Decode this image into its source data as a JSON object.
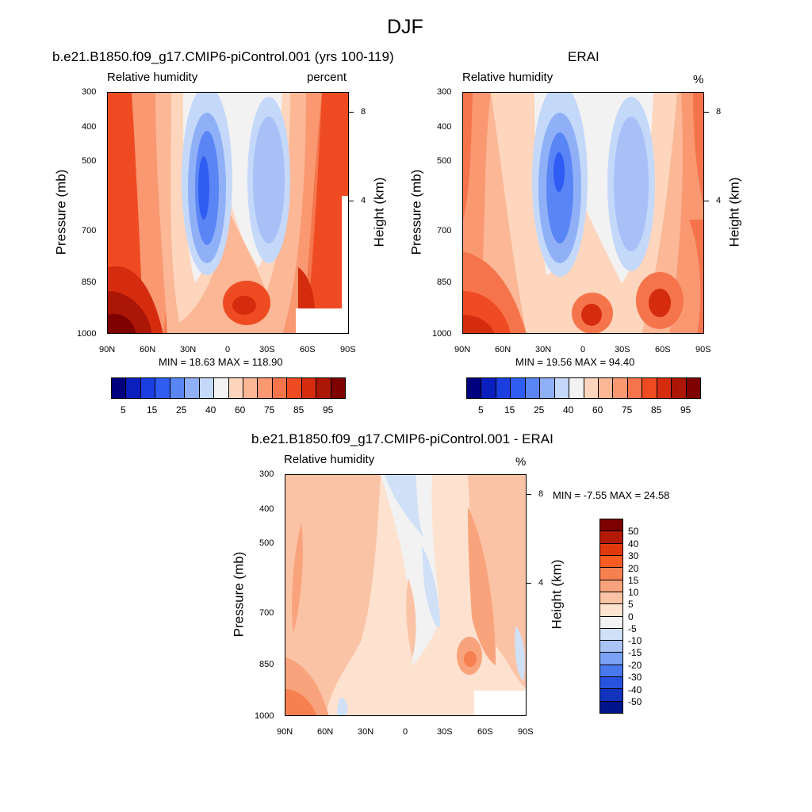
{
  "figure_title": "DJF",
  "chart_data": [
    {
      "type": "heatmap",
      "title": "b.e21.B1850.f09_g17.CMIP6-piControl.001 (yrs 100-119)",
      "left_label": "Relative humidity",
      "right_label": "percent",
      "ylabel": "Pressure (mb)",
      "ylabel_right": "Height (km)",
      "x_ticks": [
        "90N",
        "60N",
        "30N",
        "0",
        "30S",
        "60S",
        "90S"
      ],
      "y_ticks": [
        "300",
        "400",
        "500",
        "700",
        "850",
        "1000"
      ],
      "y_ticks_right": [
        "8",
        "4"
      ],
      "stats": "MIN =  18.63  MAX = 118.90",
      "colorbar_labels": [
        "5",
        "15",
        "25",
        "40",
        "60",
        "75",
        "85",
        "95"
      ]
    },
    {
      "type": "heatmap",
      "title": "ERAI",
      "left_label": "Relative humidity",
      "right_label": "%",
      "ylabel": "Pressure (mb)",
      "ylabel_right": "Height (km)",
      "x_ticks": [
        "90N",
        "60N",
        "30N",
        "0",
        "30S",
        "60S",
        "90S"
      ],
      "y_ticks": [
        "300",
        "400",
        "500",
        "700",
        "850",
        "1000"
      ],
      "y_ticks_right": [
        "8",
        "4"
      ],
      "stats": "MIN =  19.56  MAX =  94.40",
      "colorbar_labels": [
        "5",
        "15",
        "25",
        "40",
        "60",
        "75",
        "85",
        "95"
      ]
    },
    {
      "type": "heatmap",
      "title": "b.e21.B1850.f09_g17.CMIP6-piControl.001 - ERAI",
      "left_label": "Relative humidity",
      "right_label": "%",
      "ylabel": "Pressure (mb)",
      "ylabel_right": "Height (km)",
      "x_ticks": [
        "90N",
        "60N",
        "30N",
        "0",
        "30S",
        "60S",
        "90S"
      ],
      "y_ticks": [
        "300",
        "400",
        "500",
        "700",
        "850",
        "1000"
      ],
      "y_ticks_right": [
        "8",
        "4"
      ],
      "stats": "MIN = -7.55  MAX =  24.58",
      "colorbar_labels": [
        "50",
        "40",
        "30",
        "20",
        "15",
        "10",
        "5",
        "0",
        "-5",
        "-10",
        "-15",
        "-20",
        "-30",
        "-40",
        "-50"
      ]
    }
  ],
  "colors": {
    "abs_scale": [
      "#00007f",
      "#0a1fbd",
      "#1a3ee0",
      "#2f5cf2",
      "#5a86f5",
      "#8fb0f7",
      "#c4d8fa",
      "#f2f2f2",
      "#fdd6bd",
      "#fbb796",
      "#f99871",
      "#f6744b",
      "#ef4b22",
      "#d52c0f",
      "#ab1606",
      "#7e0000"
    ],
    "diff_scale": [
      "#7e0000",
      "#b21a06",
      "#e0390d",
      "#f95b22",
      "#f78051",
      "#f9a37c",
      "#fbc3a5",
      "#fde2d0",
      "#f2f2f2",
      "#cfe0f7",
      "#a9c4f5",
      "#7aa1f3",
      "#4a78ef",
      "#2853de",
      "#1133bd",
      "#00148c"
    ]
  }
}
